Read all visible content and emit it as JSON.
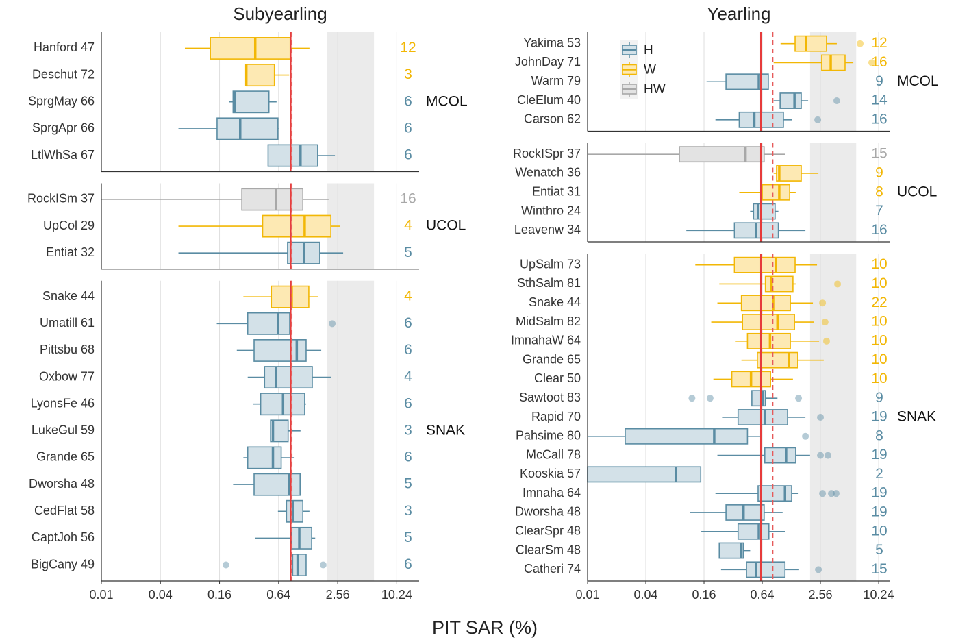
{
  "xlabel": "PIT SAR (%)",
  "chart_data": [
    {
      "type": "boxplot",
      "title": "Subyearling",
      "log_scale": true,
      "grid": true,
      "xlim": [
        0.01,
        17.3
      ],
      "xticks": [
        0.01,
        0.04,
        0.16,
        0.64,
        2.56,
        10.24
      ],
      "band": [
        2,
        6
      ],
      "ref_lines": [
        {
          "value": 0.85,
          "style": "solid",
          "color": "#e63b3b"
        },
        {
          "value": 0.87,
          "style": "dashed",
          "color": "#e65a5a"
        }
      ],
      "facets": [
        {
          "name": "MCOL",
          "rows": [
            {
              "label": "Hanford 47",
              "count": 12,
              "group": "W",
              "whisker": [
                0.071,
                1.32
              ],
              "box": [
                0.129,
                0.84
              ],
              "median": 0.37
            },
            {
              "label": "Deschut 72",
              "count": 3,
              "group": "W",
              "whisker": [
                0.3,
                0.82
              ],
              "box": [
                0.3,
                0.58
              ],
              "median": 0.3
            },
            {
              "label": "SprgMay 66",
              "count": 6,
              "group": "H",
              "whisker": [
                0.199,
                0.61
              ],
              "box": [
                0.22,
                0.51
              ],
              "median": 0.23
            },
            {
              "label": "SprgApr 66",
              "count": 6,
              "group": "H",
              "whisker": [
                0.061,
                0.64
              ],
              "box": [
                0.151,
                0.63
              ],
              "median": 0.26
            },
            {
              "label": "LtlWhSa 67",
              "count": 6,
              "group": "H",
              "whisker": [
                0.5,
                2.4
              ],
              "box": [
                0.5,
                1.6
              ],
              "median": 1.07
            }
          ]
        },
        {
          "name": "UCOL",
          "rows": [
            {
              "label": "RockISm 37",
              "count": 16,
              "group": "HW",
              "whisker": [
                0.01,
                2.07
              ],
              "box": [
                0.27,
                1.13
              ],
              "median": 0.6
            },
            {
              "label": "UpCol 29",
              "count": 4,
              "group": "W",
              "whisker": [
                0.061,
                2.72
              ],
              "box": [
                0.44,
                2.18
              ],
              "median": 1.18
            },
            {
              "label": "Entiat 32",
              "count": 5,
              "group": "H",
              "whisker": [
                0.061,
                2.91
              ],
              "box": [
                0.79,
                1.68
              ],
              "median": 1.16
            }
          ]
        },
        {
          "name": "SNAK",
          "rows": [
            {
              "label": "Snake 44",
              "count": 4,
              "group": "W",
              "whisker": [
                0.28,
                1.63
              ],
              "box": [
                0.54,
                1.3
              ],
              "median": 0.87
            },
            {
              "label": "Umatill 61",
              "count": 6,
              "group": "H",
              "whisker": [
                0.15,
                0.83
              ],
              "box": [
                0.31,
                0.83
              ],
              "median": 0.63,
              "outliers": [
                2.25
              ]
            },
            {
              "label": "Pittsbu 68",
              "count": 6,
              "group": "H",
              "whisker": [
                0.24,
                1.74
              ],
              "box": [
                0.36,
                1.22
              ],
              "median": 0.98
            },
            {
              "label": "Oxbow 77",
              "count": 4,
              "group": "H",
              "whisker": [
                0.31,
                2.18
              ],
              "box": [
                0.46,
                1.41
              ],
              "median": 0.6
            },
            {
              "label": "LyonsFe 46",
              "count": 6,
              "group": "H",
              "whisker": [
                0.35,
                1.22
              ],
              "box": [
                0.42,
                1.18
              ],
              "median": 0.71
            },
            {
              "label": "LukeGul 59",
              "count": 3,
              "group": "H",
              "whisker": [
                0.53,
                1.07
              ],
              "box": [
                0.53,
                0.8
              ],
              "median": 0.56
            },
            {
              "label": "Grande 65",
              "count": 6,
              "group": "H",
              "whisker": [
                0.28,
                0.93
              ],
              "box": [
                0.31,
                0.68
              ],
              "median": 0.56
            },
            {
              "label": "Dworsha 48",
              "count": 5,
              "group": "H",
              "whisker": [
                0.22,
                1.06
              ],
              "box": [
                0.36,
                1.06
              ],
              "median": 0.82
            },
            {
              "label": "CedFlat 58",
              "count": 3,
              "group": "H",
              "whisker": [
                0.63,
                1.32
              ],
              "box": [
                0.77,
                1.13
              ],
              "median": 0.9
            },
            {
              "label": "CaptJoh 56",
              "count": 5,
              "group": "H",
              "whisker": [
                0.37,
                1.51
              ],
              "box": [
                0.87,
                1.39
              ],
              "median": 1.04
            },
            {
              "label": "BigCany 49",
              "count": 6,
              "group": "H",
              "whisker": [
                0.89,
                1.22
              ],
              "box": [
                0.89,
                1.22
              ],
              "median": 1.0,
              "outliers": [
                0.186,
                1.82
              ]
            }
          ]
        }
      ]
    },
    {
      "type": "boxplot",
      "title": "Yearling",
      "log_scale": true,
      "grid": true,
      "xlim": [
        0.01,
        13.5
      ],
      "xticks": [
        0.01,
        0.04,
        0.16,
        0.64,
        2.56,
        10.24
      ],
      "band": [
        2,
        6
      ],
      "ref_lines": [
        {
          "value": 0.62,
          "style": "solid",
          "color": "#e63b3b"
        },
        {
          "value": 0.82,
          "style": "dashed",
          "color": "#e65a5a"
        }
      ],
      "legend": "top-left",
      "series": [
        {
          "name": "H",
          "color": "#5a8ca3",
          "fill": "#d3e1e8"
        },
        {
          "name": "W",
          "color": "#f2b705",
          "fill": "#fde9b3"
        },
        {
          "name": "HW",
          "color": "#a8a8a8",
          "fill": "#e3e3e3"
        }
      ],
      "facets": [
        {
          "name": "MCOL",
          "rows": [
            {
              "label": "Yakima 53",
              "count": 12,
              "group": "W",
              "whisker": [
                0.99,
                3.78
              ],
              "box": [
                1.4,
                2.96
              ],
              "median": 1.82,
              "outliers": [
                6.59
              ]
            },
            {
              "label": "JohnDay 71",
              "count": 16,
              "group": "W",
              "whisker": [
                0.84,
                5.6
              ],
              "box": [
                2.64,
                4.6
              ],
              "median": 3.27,
              "outliers": [
                8.69
              ]
            },
            {
              "label": "Warm 79",
              "count": 9,
              "group": "H",
              "whisker": [
                0.17,
                0.74
              ],
              "box": [
                0.27,
                0.74
              ],
              "median": 0.59
            },
            {
              "label": "CleElum 40",
              "count": 14,
              "group": "H",
              "whisker": [
                0.84,
                1.91
              ],
              "box": [
                0.98,
                1.62
              ],
              "median": 1.38,
              "outliers": [
                3.78
              ]
            },
            {
              "label": "Carson 62",
              "count": 16,
              "group": "H",
              "whisker": [
                0.21,
                1.29
              ],
              "box": [
                0.37,
                1.06
              ],
              "median": 0.53,
              "outliers": [
                2.4
              ]
            }
          ]
        },
        {
          "name": "UCOL",
          "rows": [
            {
              "label": "RockISpr 37",
              "count": 15,
              "group": "HW",
              "whisker": [
                0.01,
                1.11
              ],
              "box": [
                0.089,
                0.67
              ],
              "median": 0.43
            },
            {
              "label": "Wenatch 36",
              "count": 9,
              "group": "W",
              "whisker": [
                0.84,
                2.44
              ],
              "box": [
                0.9,
                1.62
              ],
              "median": 0.96
            },
            {
              "label": "Entiat 31",
              "count": 8,
              "group": "W",
              "whisker": [
                0.37,
                1.42
              ],
              "box": [
                0.64,
                1.23
              ],
              "median": 0.96
            },
            {
              "label": "Winthro 24",
              "count": 7,
              "group": "H",
              "whisker": [
                0.48,
                0.94
              ],
              "box": [
                0.52,
                0.87
              ],
              "median": 0.58
            },
            {
              "label": "Leavenw 34",
              "count": 16,
              "group": "H",
              "whisker": [
                0.105,
                1.79
              ],
              "box": [
                0.33,
                0.94
              ],
              "median": 0.55
            }
          ]
        },
        {
          "name": "SNAK",
          "rows": [
            {
              "label": "UpSalm 73",
              "count": 10,
              "group": "W",
              "whisker": [
                0.13,
                2.36
              ],
              "box": [
                0.33,
                1.4
              ],
              "median": 0.89
            },
            {
              "label": "SthSalm 81",
              "count": 10,
              "group": "W",
              "whisker": [
                0.23,
                1.42
              ],
              "box": [
                0.69,
                1.33
              ],
              "median": 0.8,
              "outliers": [
                3.85
              ]
            },
            {
              "label": "Snake 44",
              "count": 22,
              "group": "W",
              "whisker": [
                0.22,
                2.14
              ],
              "box": [
                0.39,
                1.25
              ],
              "median": 0.83,
              "outliers": [
                2.69
              ]
            },
            {
              "label": "MidSalm 82",
              "count": 10,
              "group": "W",
              "whisker": [
                0.19,
                2.18
              ],
              "box": [
                0.4,
                1.38
              ],
              "median": 0.92,
              "outliers": [
                2.86
              ]
            },
            {
              "label": "ImnahaW 64",
              "count": 10,
              "group": "W",
              "whisker": [
                0.34,
                2.48
              ],
              "box": [
                0.45,
                1.25
              ],
              "median": 0.77,
              "outliers": [
                2.96
              ]
            },
            {
              "label": "Grande 65",
              "count": 10,
              "group": "W",
              "whisker": [
                0.39,
                2.77
              ],
              "box": [
                0.57,
                1.49
              ],
              "median": 1.21
            },
            {
              "label": "Clear 50",
              "count": 10,
              "group": "W",
              "whisker": [
                0.2,
                1.33
              ],
              "box": [
                0.31,
                0.78
              ],
              "median": 0.49
            },
            {
              "label": "Sawtoot 83",
              "count": 9,
              "group": "H",
              "whisker": [
                0.5,
                0.92
              ],
              "box": [
                0.5,
                0.69
              ],
              "median": 0.65,
              "outliers": [
                0.12,
                0.185,
                1.52
              ]
            },
            {
              "label": "Rapid 70",
              "count": 19,
              "group": "H",
              "whisker": [
                0.25,
                1.79
              ],
              "box": [
                0.36,
                1.17
              ],
              "median": 0.68,
              "outliers": [
                2.56
              ]
            },
            {
              "label": "Pahsime 80",
              "count": 8,
              "group": "H",
              "whisker": [
                0.01,
                0.63
              ],
              "box": [
                0.0245,
                0.45
              ],
              "median": 0.204,
              "outliers": [
                1.79
              ]
            },
            {
              "label": "McCall 78",
              "count": 19,
              "group": "H",
              "whisker": [
                0.22,
                2.0
              ],
              "box": [
                0.68,
                1.42
              ],
              "median": 1.13,
              "outliers": [
                2.56,
                3.06
              ]
            },
            {
              "label": "Kooskia 57",
              "count": 2,
              "group": "H",
              "whisker": [
                0.01,
                0.148
              ],
              "box": [
                0.01,
                0.148
              ],
              "median": 0.082
            },
            {
              "label": "Imnaha 64",
              "count": 19,
              "group": "H",
              "whisker": [
                0.21,
                1.52
              ],
              "box": [
                0.58,
                1.29
              ],
              "median": 1.1,
              "outliers": [
                2.69,
                3.32,
                3.72
              ]
            },
            {
              "label": "Dworsha 48",
              "count": 19,
              "group": "H",
              "whisker": [
                0.115,
                1.04
              ],
              "box": [
                0.27,
                0.67
              ],
              "median": 0.41
            },
            {
              "label": "ClearSpr 48",
              "count": 10,
              "group": "H",
              "whisker": [
                0.15,
                1.1
              ],
              "box": [
                0.36,
                0.75
              ],
              "median": 0.59
            },
            {
              "label": "ClearSm 48",
              "count": 5,
              "group": "H",
              "whisker": [
                0.23,
                0.48
              ],
              "box": [
                0.23,
                0.41
              ],
              "median": 0.39
            },
            {
              "label": "Catheri 74",
              "count": 15,
              "group": "H",
              "whisker": [
                0.24,
                1.54
              ],
              "box": [
                0.44,
                1.1
              ],
              "median": 0.55,
              "outliers": [
                2.44
              ]
            }
          ]
        }
      ]
    }
  ]
}
